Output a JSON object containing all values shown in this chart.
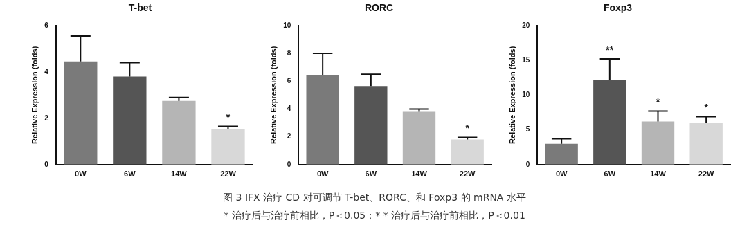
{
  "chart_data": [
    {
      "type": "bar",
      "title": "T-bet",
      "ylabel": "Relative Expression (folds)",
      "categories": [
        "0W",
        "6W",
        "14W",
        "22W"
      ],
      "values": [
        4.45,
        3.8,
        2.75,
        1.55
      ],
      "errors": [
        [
          4.45,
          5.55
        ],
        [
          3.8,
          4.4
        ],
        [
          2.75,
          2.9
        ],
        [
          1.55,
          1.65
        ]
      ],
      "colors": [
        "#7a7a7a",
        "#555555",
        "#b5b5b5",
        "#d8d8d8"
      ],
      "ylim": [
        0,
        6
      ],
      "yticks": [
        0,
        2,
        4,
        6
      ],
      "grid": false,
      "legend": false,
      "annotations": [
        {
          "text": "*",
          "x": "22W",
          "y": 1.55
        },
        "图 3  IFX 治疗 CD 对可调节 T-bet、RORC、和 Foxp3 的 mRNA 水平",
        "* 治疗后与治疗前相比，P＜0.05；* * 治疗后与治疗前相比，P＜0.01"
      ]
    },
    {
      "type": "bar",
      "title": "RORC",
      "ylabel": "Relative Expression (folds)",
      "categories": [
        "0W",
        "6W",
        "14W",
        "22W"
      ],
      "values": [
        6.45,
        5.65,
        3.8,
        1.8
      ],
      "errors": [
        [
          6.45,
          8.0
        ],
        [
          5.65,
          6.5
        ],
        [
          3.8,
          4.0
        ],
        [
          1.8,
          1.95
        ]
      ],
      "colors": [
        "#7a7a7a",
        "#555555",
        "#b5b5b5",
        "#d8d8d8"
      ],
      "ylim": [
        0,
        10
      ],
      "yticks": [
        0,
        2,
        4,
        6,
        8,
        10
      ],
      "grid": false,
      "legend": false,
      "annotations": [
        {
          "text": "*",
          "x": "22W",
          "y": 1.8
        }
      ]
    },
    {
      "type": "bar",
      "title": "Foxp3",
      "ylabel": "Relative Expression (folds)",
      "categories": [
        "0W",
        "6W",
        "14W",
        "22W"
      ],
      "values": [
        3.0,
        12.2,
        6.2,
        6.0
      ],
      "errors": [
        [
          3.0,
          3.7
        ],
        [
          12.2,
          15.2
        ],
        [
          6.2,
          7.7
        ],
        [
          6.0,
          6.9
        ]
      ],
      "colors": [
        "#7a7a7a",
        "#555555",
        "#b5b5b5",
        "#d8d8d8"
      ],
      "ylim": [
        0,
        20
      ],
      "yticks": [
        0,
        5,
        10,
        15,
        20
      ],
      "grid": false,
      "legend": false,
      "annotations": [
        {
          "text": "**",
          "x": "6W",
          "y": 12.2
        },
        {
          "text": "*",
          "x": "14W",
          "y": 6.2
        },
        {
          "text": "*",
          "x": "22W",
          "y": 6.0
        }
      ]
    }
  ]
}
